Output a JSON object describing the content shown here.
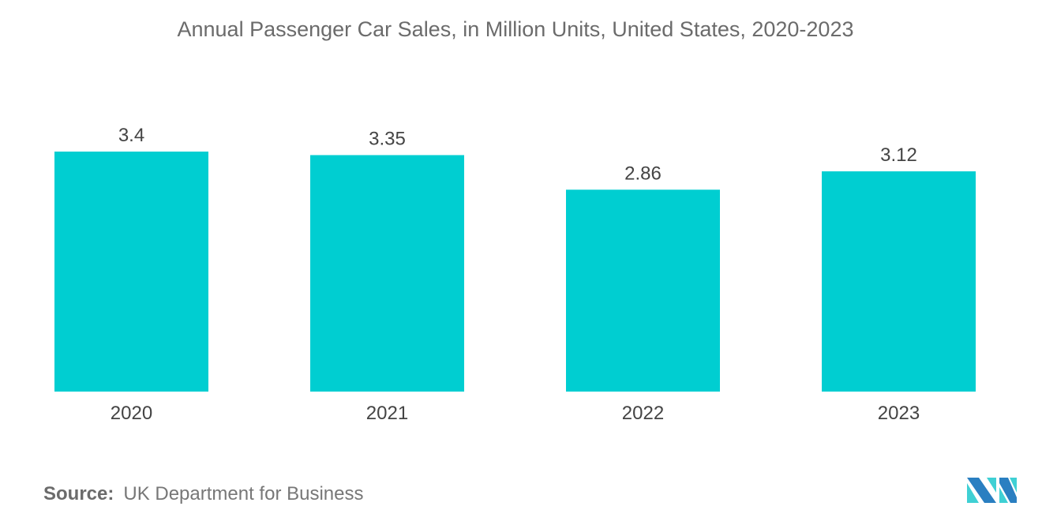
{
  "chart_data": {
    "type": "bar",
    "title": "Annual Passenger Car Sales, in Million Units, United States, 2020-2023",
    "categories": [
      "2020",
      "2021",
      "2022",
      "2023"
    ],
    "values": [
      3.4,
      3.35,
      2.86,
      3.12
    ],
    "value_labels": [
      "3.4",
      "3.35",
      "2.86",
      "3.12"
    ],
    "xlabel": "",
    "ylabel": "",
    "ylim": [
      0,
      3.4
    ],
    "grid": false,
    "bar_color": "#00CED1"
  },
  "source": {
    "label": "Source:",
    "text": "UK Department for Business"
  },
  "logo": {
    "colors": [
      "#2a7fc1",
      "#3fd0d4"
    ]
  }
}
